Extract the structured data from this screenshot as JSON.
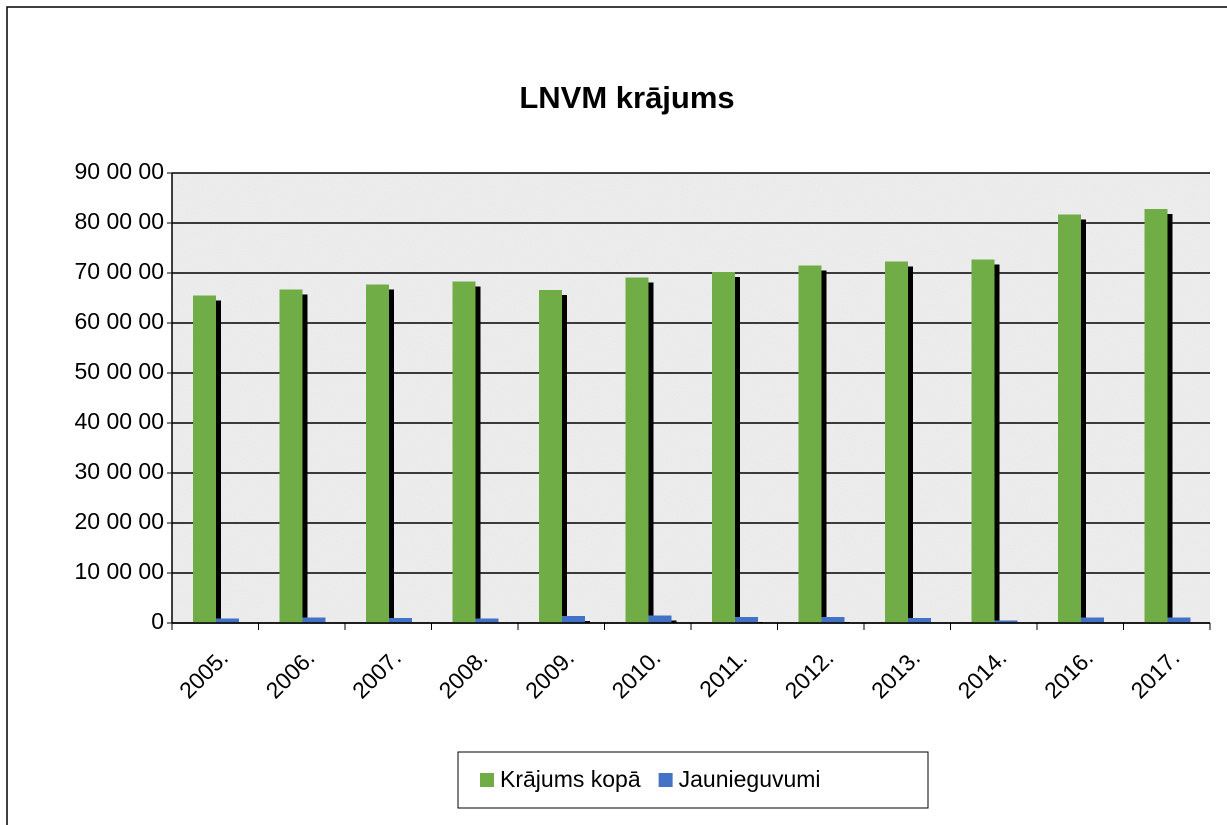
{
  "chart_data": {
    "type": "bar",
    "title": "LNVM krājums",
    "categories": [
      "2005.",
      "2006.",
      "2007.",
      "2008.",
      "2009.",
      "2010.",
      "2011.",
      "2012.",
      "2013.",
      "2014.",
      "2016.",
      "2017."
    ],
    "series": [
      {
        "name": "Krājums kopā",
        "color": "#70ad47",
        "values": [
          655000,
          667000,
          677000,
          683000,
          666000,
          691000,
          702000,
          715000,
          723000,
          727000,
          817000,
          828000
        ]
      },
      {
        "name": "Jaunieguvumi",
        "color": "#4472c4",
        "values": [
          9000,
          11000,
          10000,
          9000,
          14000,
          15000,
          12000,
          12000,
          10000,
          5000,
          11000,
          11000
        ]
      }
    ],
    "ylim": [
      0,
      900000
    ],
    "yticks": [
      0,
      {
        "value": 100000,
        "label": "10 00 00"
      },
      {
        "value": 200000,
        "label": "20 00 00"
      },
      {
        "value": 300000,
        "label": "30 00 00"
      },
      {
        "value": 400000,
        "label": "40 00 00"
      },
      {
        "value": 500000,
        "label": "50 00 00"
      },
      {
        "value": 600000,
        "label": "60 00 00"
      },
      {
        "value": 700000,
        "label": "70 00 00"
      },
      {
        "value": 800000,
        "label": "80 00 00"
      },
      {
        "value": 900000,
        "label": "90 00 00"
      }
    ],
    "grid": true,
    "legend": "bottom"
  }
}
